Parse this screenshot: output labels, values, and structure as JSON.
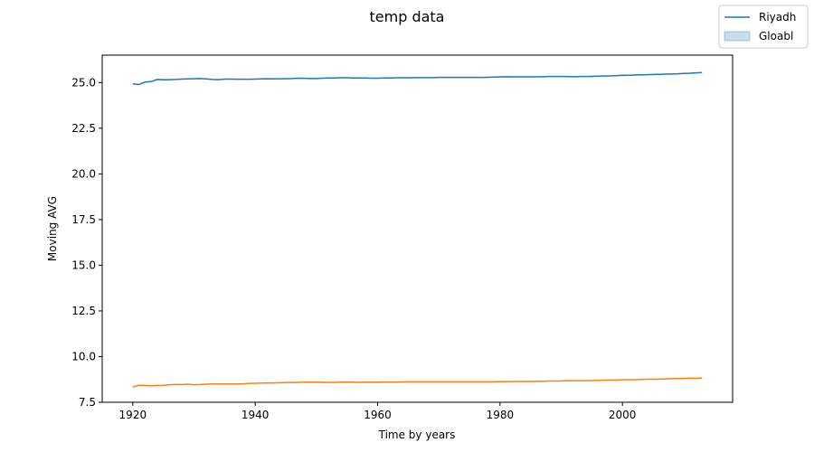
{
  "chart_data": {
    "type": "line",
    "title": "temp data",
    "xlabel": "Time by years",
    "ylabel": "Moving AVG",
    "xlim": [
      1915,
      2018
    ],
    "ylim": [
      7.5,
      26.5
    ],
    "x_ticks": [
      1920,
      1940,
      1960,
      1980,
      2000
    ],
    "y_ticks": [
      7.5,
      10.0,
      12.5,
      15.0,
      17.5,
      20.0,
      22.5,
      25.0
    ],
    "y_tick_labels": [
      "7.5",
      "10.0",
      "12.5",
      "15.0",
      "17.5",
      "20.0",
      "22.5",
      "25.0"
    ],
    "grid": false,
    "legend": {
      "placement": "top-right",
      "entries": [
        {
          "label": "Riyadh",
          "style": "line",
          "color": "#1f77b4"
        },
        {
          "label": "Gloabl",
          "style": "patch",
          "color": "#1f77b4"
        }
      ]
    },
    "series": [
      {
        "color": "#1f77b4",
        "x": [
          1920,
          1921,
          1922,
          1923,
          1924,
          1925,
          1926,
          1927,
          1928,
          1929,
          1930,
          1931,
          1932,
          1933,
          1934,
          1935,
          1936,
          1937,
          1938,
          1939,
          1940,
          1941,
          1942,
          1943,
          1944,
          1945,
          1946,
          1947,
          1948,
          1949,
          1950,
          1951,
          1952,
          1953,
          1954,
          1955,
          1956,
          1957,
          1958,
          1959,
          1960,
          1961,
          1962,
          1963,
          1964,
          1965,
          1966,
          1967,
          1968,
          1969,
          1970,
          1971,
          1972,
          1973,
          1974,
          1975,
          1976,
          1977,
          1978,
          1979,
          1980,
          1981,
          1982,
          1983,
          1984,
          1985,
          1986,
          1987,
          1988,
          1989,
          1990,
          1991,
          1992,
          1993,
          1994,
          1995,
          1996,
          1997,
          1998,
          1999,
          2000,
          2001,
          2002,
          2003,
          2004,
          2005,
          2006,
          2007,
          2008,
          2009,
          2010,
          2011,
          2012,
          2013
        ],
        "y": [
          24.93,
          24.89,
          25.03,
          25.05,
          25.17,
          25.15,
          25.16,
          25.17,
          25.19,
          25.2,
          25.21,
          25.22,
          25.2,
          25.17,
          25.16,
          25.19,
          25.19,
          25.18,
          25.18,
          25.18,
          25.19,
          25.2,
          25.21,
          25.2,
          25.21,
          25.21,
          25.22,
          25.24,
          25.23,
          25.22,
          25.22,
          25.24,
          25.25,
          25.25,
          25.26,
          25.26,
          25.25,
          25.25,
          25.25,
          25.24,
          25.24,
          25.25,
          25.25,
          25.26,
          25.26,
          25.26,
          25.27,
          25.27,
          25.27,
          25.27,
          25.28,
          25.28,
          25.28,
          25.28,
          25.28,
          25.28,
          25.28,
          25.28,
          25.29,
          25.3,
          25.31,
          25.32,
          25.31,
          25.31,
          25.31,
          25.31,
          25.31,
          25.32,
          25.33,
          25.33,
          25.33,
          25.33,
          25.32,
          25.33,
          25.33,
          25.34,
          25.35,
          25.36,
          25.36,
          25.38,
          25.39,
          25.4,
          25.41,
          25.42,
          25.43,
          25.44,
          25.45,
          25.46,
          25.47,
          25.48,
          25.5,
          25.51,
          25.53,
          25.55
        ]
      },
      {
        "color": "#ff7f0e",
        "x": [
          1920,
          1921,
          1922,
          1923,
          1924,
          1925,
          1926,
          1927,
          1928,
          1929,
          1930,
          1931,
          1932,
          1933,
          1934,
          1935,
          1936,
          1937,
          1938,
          1939,
          1940,
          1941,
          1942,
          1943,
          1944,
          1945,
          1946,
          1947,
          1948,
          1949,
          1950,
          1951,
          1952,
          1953,
          1954,
          1955,
          1956,
          1957,
          1958,
          1959,
          1960,
          1961,
          1962,
          1963,
          1964,
          1965,
          1966,
          1967,
          1968,
          1969,
          1970,
          1971,
          1972,
          1973,
          1974,
          1975,
          1976,
          1977,
          1978,
          1979,
          1980,
          1981,
          1982,
          1983,
          1984,
          1985,
          1986,
          1987,
          1988,
          1989,
          1990,
          1991,
          1992,
          1993,
          1994,
          1995,
          1996,
          1997,
          1998,
          1999,
          2000,
          2001,
          2002,
          2003,
          2004,
          2005,
          2006,
          2007,
          2008,
          2009,
          2010,
          2011,
          2012,
          2013
        ],
        "y": [
          8.34,
          8.43,
          8.42,
          8.41,
          8.42,
          8.43,
          8.46,
          8.47,
          8.47,
          8.49,
          8.46,
          8.47,
          8.49,
          8.5,
          8.5,
          8.5,
          8.5,
          8.5,
          8.51,
          8.53,
          8.54,
          8.55,
          8.56,
          8.56,
          8.57,
          8.58,
          8.58,
          8.59,
          8.6,
          8.6,
          8.6,
          8.59,
          8.59,
          8.59,
          8.6,
          8.6,
          8.6,
          8.59,
          8.6,
          8.6,
          8.6,
          8.61,
          8.61,
          8.61,
          8.62,
          8.62,
          8.62,
          8.62,
          8.62,
          8.62,
          8.62,
          8.62,
          8.62,
          8.62,
          8.62,
          8.62,
          8.62,
          8.62,
          8.62,
          8.62,
          8.63,
          8.63,
          8.64,
          8.64,
          8.64,
          8.64,
          8.65,
          8.65,
          8.66,
          8.66,
          8.67,
          8.68,
          8.68,
          8.68,
          8.68,
          8.69,
          8.7,
          8.71,
          8.72,
          8.72,
          8.73,
          8.74,
          8.74,
          8.75,
          8.76,
          8.76,
          8.77,
          8.78,
          8.79,
          8.8,
          8.81,
          8.82,
          8.82,
          8.83
        ]
      }
    ]
  }
}
